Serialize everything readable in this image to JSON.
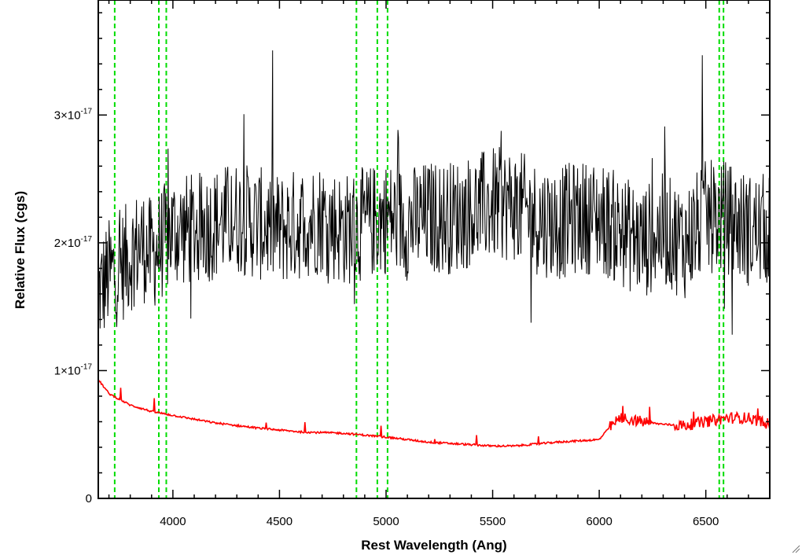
{
  "chart_data": {
    "type": "line",
    "title": "",
    "xlabel": "Rest Wavelength (Ang)",
    "ylabel": "Relative Flux (cgs)",
    "xlim": [
      3650,
      6800
    ],
    "ylim": [
      0,
      3.9e-17
    ],
    "x_ticks": [
      4000,
      4500,
      5000,
      5500,
      6000,
      6500
    ],
    "x_tick_labels": [
      "4000",
      "4500",
      "5000",
      "5500",
      "6000",
      "6500"
    ],
    "y_ticks": [
      {
        "value": 0,
        "mantissa": "0",
        "exponent": ""
      },
      {
        "value": 1e-17,
        "mantissa": "1×10",
        "exponent": "-17"
      },
      {
        "value": 2e-17,
        "mantissa": "2×10",
        "exponent": "-17"
      },
      {
        "value": 3e-17,
        "mantissa": "3×10",
        "exponent": "-17"
      }
    ],
    "grid": false,
    "legend": "none",
    "colors": {
      "spectrum": "#000000",
      "model": "#ff0000",
      "lines": "#00dd00"
    },
    "series": [
      {
        "role": "spectrum",
        "x": [
          3650,
          3700,
          3750,
          3800,
          3850,
          3900,
          3950,
          4000,
          4100,
          4200,
          4300,
          4400,
          4500,
          4600,
          4700,
          4800,
          4900,
          5000,
          5100,
          5200,
          5300,
          5400,
          5500,
          5600,
          5700,
          5800,
          5900,
          6000,
          6100,
          6200,
          6300,
          6400,
          6500,
          6600,
          6700,
          6800
        ],
        "y": [
          1.6e-17,
          1.75e-17,
          1.8e-17,
          1.9e-17,
          2e-17,
          1.9e-17,
          2e-17,
          2.1e-17,
          2.1e-17,
          2.15e-17,
          2.2e-17,
          2.15e-17,
          2.1e-17,
          2.15e-17,
          2.2e-17,
          2.1e-17,
          2.15e-17,
          2.2e-17,
          2.15e-17,
          2.2e-17,
          2.2e-17,
          2.25e-17,
          2.3e-17,
          2.3e-17,
          2.2e-17,
          2.15e-17,
          2.2e-17,
          2.2e-17,
          2.1e-17,
          2e-17,
          2.1e-17,
          2e-17,
          2.2e-17,
          2.2e-17,
          2.1e-17,
          2.1e-17
        ]
      },
      {
        "role": "model",
        "x": [
          3650,
          3700,
          3800,
          3900,
          4000,
          4200,
          4400,
          4600,
          4800,
          5000,
          5100,
          5200,
          5300,
          5400,
          5500,
          5600,
          5800,
          6000,
          6050,
          6100,
          6200,
          6300,
          6400,
          6500,
          6600,
          6700,
          6800
        ],
        "y": [
          9.3e-18,
          8.2e-18,
          7.3e-18,
          6.8e-18,
          6.5e-18,
          5.9e-18,
          5.5e-18,
          5.2e-18,
          5.1e-18,
          4.8e-18,
          4.6e-18,
          4.4e-18,
          4.3e-18,
          4.2e-18,
          4.1e-18,
          4.1e-18,
          4.4e-18,
          4.6e-18,
          5.6e-18,
          6.3e-18,
          6e-18,
          5.8e-18,
          5.7e-18,
          6e-18,
          6.3e-18,
          6.3e-18,
          5.8e-18
        ]
      }
    ],
    "emission_line_markers": [
      3727,
      3934,
      3969,
      4861,
      4959,
      5007,
      6563,
      6583
    ]
  }
}
